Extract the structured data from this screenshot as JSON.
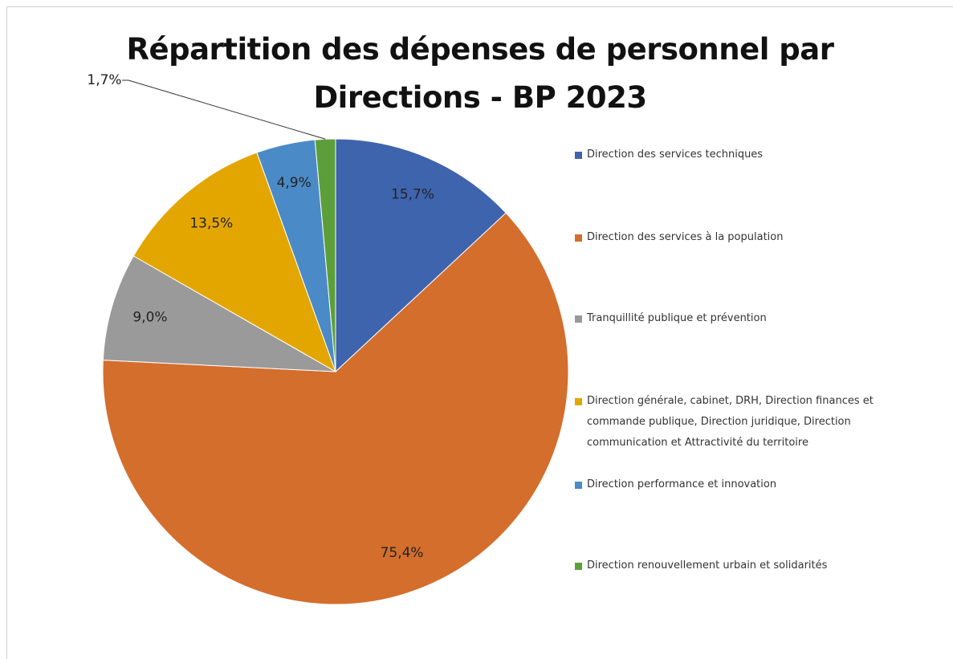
{
  "chart_data": {
    "type": "pie",
    "title": "Répartition des dépenses de personnel par Directions - BP 2023",
    "categories": [
      "Direction des services techniques",
      "Direction des services à la population",
      "Tranquillité publique et prévention",
      "Direction générale, cabinet, DRH, Direction finances et commande publique, Direction juridique, Direction communication et Attractivité du territoire",
      "Direction performance et innovation",
      "Direction renouvellement urbain et solidarités"
    ],
    "values": [
      15.7,
      75.4,
      9.0,
      13.5,
      4.9,
      1.7
    ],
    "value_labels": [
      "15,7%",
      "75,4%",
      "9,0%",
      "13,5%",
      "4,9%",
      "1,7%"
    ],
    "colors": [
      "#3f64ae",
      "#d46e2c",
      "#9a9a9a",
      "#e3a600",
      "#4a8ac6",
      "#5c9f3a"
    ],
    "legend": "right"
  }
}
